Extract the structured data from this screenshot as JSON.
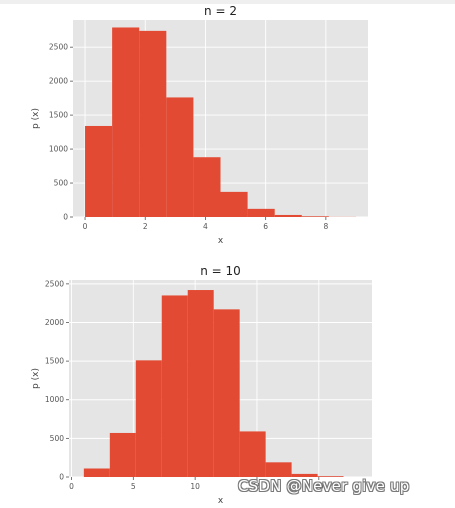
{
  "chart_data": [
    {
      "type": "bar",
      "title": "n = 2",
      "xlabel": "x",
      "ylabel": "p (x)",
      "xlim": [
        -0.4,
        9.4
      ],
      "ylim": [
        0,
        2900
      ],
      "xticks": [
        0,
        2,
        4,
        6,
        8
      ],
      "yticks": [
        0,
        500,
        1000,
        1500,
        2000,
        2500
      ],
      "grid": true,
      "bin_edges": [
        0,
        0.9,
        1.8,
        2.7,
        3.6,
        4.5,
        5.4,
        6.3,
        7.2,
        8.1,
        9.0
      ],
      "values": [
        1340,
        2790,
        2740,
        1760,
        880,
        370,
        120,
        30,
        10,
        2
      ],
      "bar_color": "#E24A33"
    },
    {
      "type": "bar",
      "title": "n = 10",
      "xlabel": "x",
      "ylabel": "p (x)",
      "xlim": [
        -0.2,
        24.3
      ],
      "ylim": [
        0,
        2550
      ],
      "xticks": [
        0,
        5,
        10,
        15,
        20
      ],
      "yticks": [
        0,
        500,
        1000,
        1500,
        2000,
        2500
      ],
      "grid": true,
      "bin_edges": [
        1,
        3.1,
        5.2,
        7.3,
        9.4,
        11.5,
        13.6,
        15.7,
        17.8,
        19.9,
        22.0
      ],
      "values": [
        110,
        570,
        1510,
        2350,
        2420,
        2170,
        590,
        190,
        40,
        10
      ],
      "bar_color": "#E24A33"
    }
  ],
  "watermark": "CSDN @Never give up"
}
